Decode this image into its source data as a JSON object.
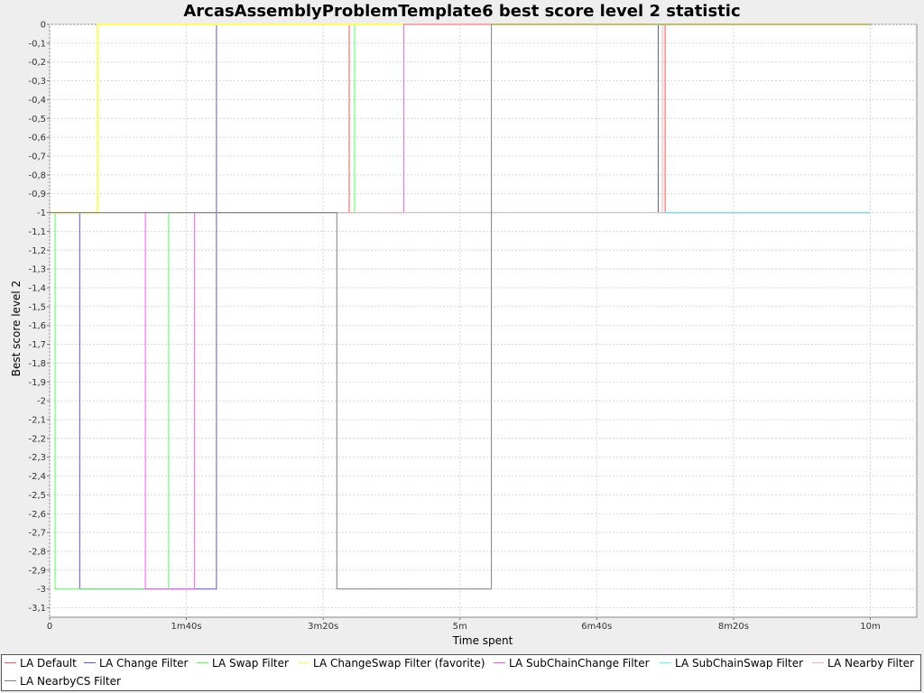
{
  "chart_data": {
    "type": "line",
    "step": true,
    "title": "ArcasAssemblyProblemTemplate6 best score level 2 statistic",
    "xlabel": "Time spent",
    "ylabel": "Best score level 2",
    "x_ticks": [
      {
        "value": 0,
        "label": "0"
      },
      {
        "value": 100,
        "label": "1m40s"
      },
      {
        "value": 200,
        "label": "3m20s"
      },
      {
        "value": 300,
        "label": "5m"
      },
      {
        "value": 400,
        "label": "6m40s"
      },
      {
        "value": 500,
        "label": "8m20s"
      },
      {
        "value": 600,
        "label": "10m"
      }
    ],
    "xlim": [
      0,
      634
    ],
    "ylim": [
      -3.15,
      0
    ],
    "y_ticks": [
      {
        "value": 0,
        "label": "0"
      },
      {
        "value": -0.1,
        "label": "-0,1"
      },
      {
        "value": -0.2,
        "label": "-0,2"
      },
      {
        "value": -0.3,
        "label": "-0,3"
      },
      {
        "value": -0.4,
        "label": "-0,4"
      },
      {
        "value": -0.5,
        "label": "-0,5"
      },
      {
        "value": -0.6,
        "label": "-0,6"
      },
      {
        "value": -0.7,
        "label": "-0,7"
      },
      {
        "value": -0.8,
        "label": "-0,8"
      },
      {
        "value": -0.9,
        "label": "-0,9"
      },
      {
        "value": -1,
        "label": "-1"
      },
      {
        "value": -1.1,
        "label": "-1,1"
      },
      {
        "value": -1.2,
        "label": "-1,2"
      },
      {
        "value": -1.3,
        "label": "-1,3"
      },
      {
        "value": -1.4,
        "label": "-1,4"
      },
      {
        "value": -1.5,
        "label": "-1,5"
      },
      {
        "value": -1.6,
        "label": "-1,6"
      },
      {
        "value": -1.7,
        "label": "-1,7"
      },
      {
        "value": -1.8,
        "label": "-1,8"
      },
      {
        "value": -1.9,
        "label": "-1,9"
      },
      {
        "value": -2,
        "label": "-2"
      },
      {
        "value": -2.1,
        "label": "-2,1"
      },
      {
        "value": -2.2,
        "label": "-2,2"
      },
      {
        "value": -2.3,
        "label": "-2,3"
      },
      {
        "value": -2.4,
        "label": "-2,4"
      },
      {
        "value": -2.5,
        "label": "-2,5"
      },
      {
        "value": -2.6,
        "label": "-2,6"
      },
      {
        "value": -2.7,
        "label": "-2,7"
      },
      {
        "value": -2.8,
        "label": "-2,8"
      },
      {
        "value": -2.9,
        "label": "-2,9"
      },
      {
        "value": -3,
        "label": "-3"
      },
      {
        "value": -3.1,
        "label": "-3,1"
      }
    ],
    "grid": true,
    "legend_position": "bottom",
    "series": [
      {
        "name": "LA Default",
        "color": "#ff5555",
        "points": [
          [
            0,
            -1
          ],
          [
            219,
            -1
          ],
          [
            219,
            0
          ],
          [
            450,
            0
          ],
          [
            450,
            -1
          ],
          [
            600,
            -1
          ]
        ]
      },
      {
        "name": "LA Change Filter",
        "color": "#5555ff",
        "points": [
          [
            0,
            -1
          ],
          [
            22,
            -1
          ],
          [
            22,
            -3
          ],
          [
            122,
            -3
          ],
          [
            122,
            0
          ],
          [
            445,
            0
          ],
          [
            445,
            -1
          ],
          [
            600,
            -1
          ]
        ]
      },
      {
        "name": "LA Swap Filter",
        "color": "#55ff55",
        "points": [
          [
            0,
            -1
          ],
          [
            4,
            -1
          ],
          [
            4,
            -3
          ],
          [
            87,
            -3
          ],
          [
            87,
            -1
          ],
          [
            223,
            -1
          ],
          [
            223,
            0
          ],
          [
            600,
            0
          ]
        ]
      },
      {
        "name": "LA ChangeSwap Filter (favorite)",
        "color": "#ffff55",
        "points": [
          [
            0,
            -1
          ],
          [
            35,
            -1
          ],
          [
            35,
            0
          ],
          [
            600,
            0
          ]
        ]
      },
      {
        "name": "LA SubChainChange Filter",
        "color": "#ff55ff",
        "points": [
          [
            0,
            -1
          ],
          [
            70,
            -1
          ],
          [
            70,
            -3
          ],
          [
            106,
            -3
          ],
          [
            106,
            -1
          ],
          [
            259,
            -1
          ],
          [
            259,
            0
          ],
          [
            600,
            0
          ]
        ]
      },
      {
        "name": "LA SubChainSwap Filter",
        "color": "#55ffff",
        "points": [
          [
            0,
            -1
          ],
          [
            600,
            -1
          ]
        ]
      },
      {
        "name": "LA Nearby Filter",
        "color": "#ffafaf",
        "points": [
          [
            0,
            -1
          ],
          [
            448,
            -1
          ],
          [
            448,
            0
          ],
          [
            600,
            0
          ]
        ]
      },
      {
        "name": "LA NearbyCS Filter",
        "color": "#808080",
        "points": [
          [
            0,
            -1
          ],
          [
            210,
            -1
          ],
          [
            210,
            -3
          ],
          [
            323,
            -3
          ],
          [
            323,
            0
          ],
          [
            600,
            0
          ]
        ]
      }
    ]
  }
}
